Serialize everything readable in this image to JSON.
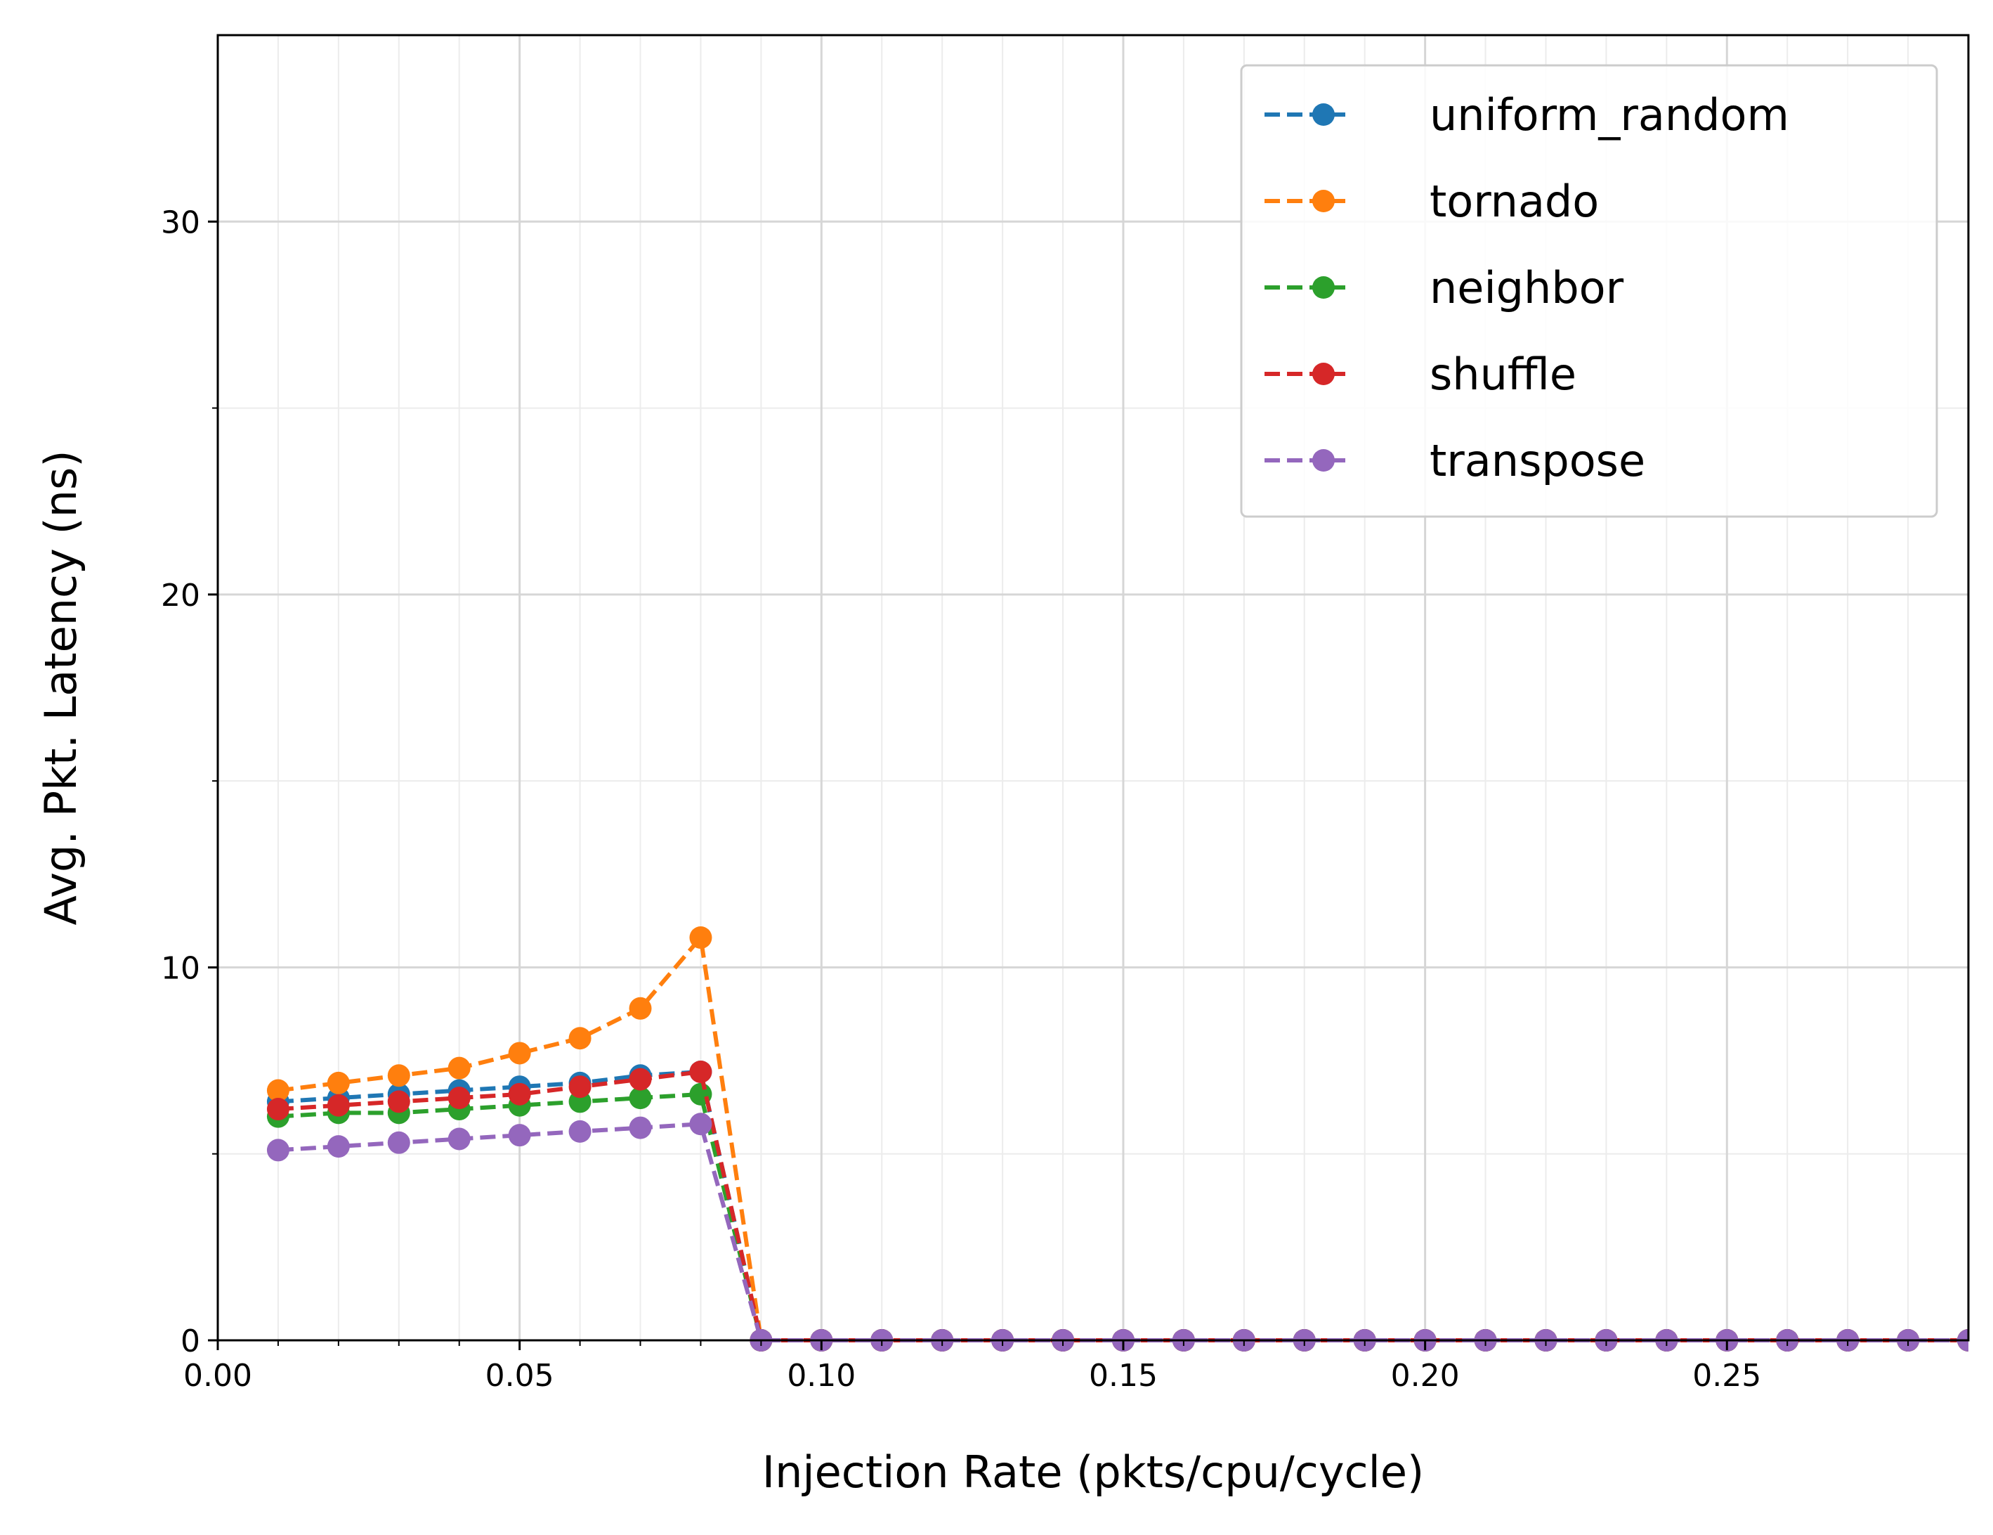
{
  "chart_data": {
    "type": "line",
    "title": "",
    "xlabel": "Injection Rate  (pkts/cpu/cycle)",
    "ylabel": "Avg. Pkt. Latency (ns)",
    "xlim": [
      0.0,
      0.29
    ],
    "ylim": [
      0,
      35
    ],
    "xticks": [
      0.0,
      0.05,
      0.1,
      0.15,
      0.2,
      0.25
    ],
    "xtick_labels": [
      "0.00",
      "0.05",
      "0.10",
      "0.15",
      "0.20",
      "0.25"
    ],
    "yticks": [
      0,
      10,
      20,
      30
    ],
    "ytick_labels": [
      "0",
      "10",
      "20",
      "30"
    ],
    "grid": true,
    "minor_grid": true,
    "legend_position": "top-right",
    "line_style": "dashed",
    "marker": "circle",
    "x": [
      0.01,
      0.02,
      0.03,
      0.04,
      0.05,
      0.06,
      0.07,
      0.08,
      0.09,
      0.1,
      0.11,
      0.12,
      0.13,
      0.14,
      0.15,
      0.16,
      0.17,
      0.18,
      0.19,
      0.2,
      0.21,
      0.22,
      0.23,
      0.24,
      0.25,
      0.26,
      0.27,
      0.28,
      0.29
    ],
    "series": [
      {
        "name": "uniform_random",
        "color": "#1f77b4",
        "values": [
          6.4,
          6.5,
          6.6,
          6.7,
          6.8,
          6.9,
          7.1,
          7.2,
          0,
          0,
          0,
          0,
          0,
          0,
          0,
          0,
          0,
          0,
          0,
          0,
          0,
          0,
          0,
          0,
          0,
          0,
          0,
          0,
          0
        ]
      },
      {
        "name": "tornado",
        "color": "#ff7f0e",
        "values": [
          6.7,
          6.9,
          7.1,
          7.3,
          7.7,
          8.1,
          8.9,
          10.8,
          0,
          0,
          0,
          0,
          0,
          0,
          0,
          0,
          0,
          0,
          0,
          0,
          0,
          0,
          0,
          0,
          0,
          0,
          0,
          0,
          0
        ]
      },
      {
        "name": "neighbor",
        "color": "#2ca02c",
        "values": [
          6.0,
          6.1,
          6.1,
          6.2,
          6.3,
          6.4,
          6.5,
          6.6,
          0,
          0,
          0,
          0,
          0,
          0,
          0,
          0,
          0,
          0,
          0,
          0,
          0,
          0,
          0,
          0,
          0,
          0,
          0,
          0,
          0
        ]
      },
      {
        "name": "shuffle",
        "color": "#d62728",
        "values": [
          6.2,
          6.3,
          6.4,
          6.5,
          6.6,
          6.8,
          7.0,
          7.2,
          0,
          0,
          0,
          0,
          0,
          0,
          0,
          0,
          0,
          0,
          0,
          0,
          0,
          0,
          0,
          0,
          0,
          0,
          0,
          0,
          0
        ]
      },
      {
        "name": "transpose",
        "color": "#9467bd",
        "values": [
          5.1,
          5.2,
          5.3,
          5.4,
          5.5,
          5.6,
          5.7,
          5.8,
          0,
          0,
          0,
          0,
          0,
          0,
          0,
          0,
          0,
          0,
          0,
          0,
          0,
          0,
          0,
          0,
          0,
          0,
          0,
          0,
          0
        ]
      }
    ]
  }
}
